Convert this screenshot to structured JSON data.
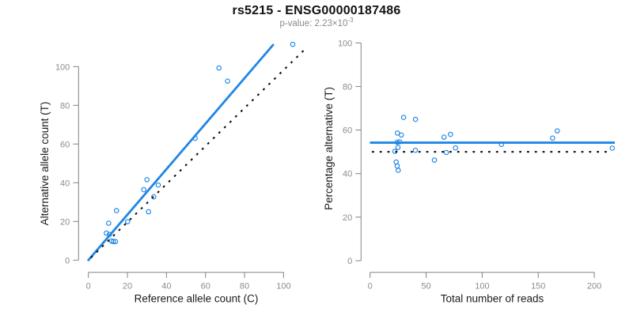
{
  "figure": {
    "title": "rs5215 - ENSG00000187486",
    "subtitle": {
      "prefix": "p-value: 2.23×10",
      "exponent": "-3"
    },
    "colors": {
      "accent_blue": "#1E86E5",
      "line_black": "#111111",
      "axis_gray": "#828282",
      "tick_label_gray": "#8c8c8c",
      "axis_title_color": "#1a1a1a",
      "background": "#ffffff"
    }
  },
  "chart_data": [
    {
      "type": "scatter",
      "panel": "left",
      "xlabel": "Reference allele count (C)",
      "ylabel": "Alternative allele count (T)",
      "xticks": [
        0,
        20,
        40,
        60,
        80,
        100
      ],
      "yticks": [
        0,
        20,
        40,
        60,
        80,
        100
      ],
      "xlim": [
        0,
        105
      ],
      "ylim": [
        0,
        112
      ],
      "grid": false,
      "points": [
        [
          9.2,
          14.0
        ],
        [
          10.8,
          13.3
        ],
        [
          11.8,
          9.9
        ],
        [
          12.8,
          9.6
        ],
        [
          13.9,
          9.6
        ],
        [
          10.4,
          19.1
        ],
        [
          20.1,
          19.9
        ],
        [
          14.4,
          25.6
        ],
        [
          30.8,
          25.0
        ],
        [
          28.4,
          36.4
        ],
        [
          30.0,
          41.6
        ],
        [
          33.5,
          32.7
        ],
        [
          35.8,
          38.8
        ],
        [
          54.7,
          63.0
        ],
        [
          66.9,
          99.3
        ],
        [
          71.3,
          92.5
        ],
        [
          104.7,
          111.5
        ]
      ],
      "regression_line": {
        "x1": 0,
        "y1": 0,
        "x2": 94.6,
        "y2": 111.2,
        "style": "solid",
        "color": "blue"
      },
      "identity_line": {
        "slope": 1,
        "intercept": 0,
        "x_start": 1.3,
        "x_end": 112,
        "style": "dotted",
        "color": "black"
      }
    },
    {
      "type": "scatter",
      "panel": "right",
      "xlabel": "Total number of reads",
      "ylabel": "Percentage alternative (T)",
      "xticks": [
        0,
        50,
        100,
        150,
        200
      ],
      "yticks": [
        0,
        20,
        40,
        60,
        80,
        100
      ],
      "xlim": [
        0,
        216
      ],
      "ylim": [
        0,
        100
      ],
      "grid": false,
      "points": [
        [
          29.9,
          65.8
        ],
        [
          40.5,
          64.9
        ],
        [
          24.4,
          58.6
        ],
        [
          27.9,
          57.7
        ],
        [
          24.2,
          54.4
        ],
        [
          26.3,
          54.6
        ],
        [
          24.9,
          52.0
        ],
        [
          22.1,
          50.2
        ],
        [
          40.4,
          50.7
        ],
        [
          57.4,
          46.2
        ],
        [
          23.3,
          45.3
        ],
        [
          24.2,
          43.5
        ],
        [
          25.1,
          41.5
        ],
        [
          65.9,
          56.7
        ],
        [
          71.7,
          58.0
        ],
        [
          68.0,
          49.7
        ],
        [
          76.2,
          51.8
        ],
        [
          117.2,
          53.4
        ],
        [
          162.8,
          56.3
        ],
        [
          167.0,
          59.6
        ],
        [
          216.0,
          51.7
        ]
      ],
      "mean_line": {
        "y": 54.2,
        "style": "solid",
        "color": "blue"
      },
      "reference_line": {
        "y": 50,
        "style": "dotted",
        "color": "black"
      }
    }
  ]
}
